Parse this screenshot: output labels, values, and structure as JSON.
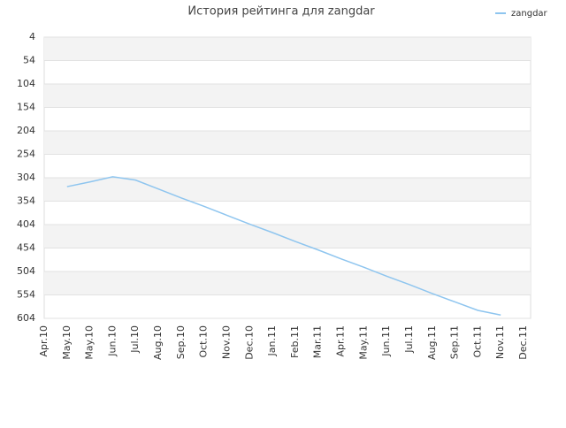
{
  "chart_data": {
    "type": "line",
    "title": "История рейтинга для zangdar",
    "categories": [
      "Apr.10",
      "May.10",
      "May.10",
      "Jun.10",
      "Jul.10",
      "Aug.10",
      "Sep.10",
      "Oct.10",
      "Nov.10",
      "Dec.10",
      "Jan.11",
      "Feb.11",
      "Mar.11",
      "Apr.11",
      "May.11",
      "Jun.11",
      "Jul.11",
      "Aug.11",
      "Sep.11",
      "Oct.11",
      "Nov.11",
      "Dec.11"
    ],
    "series": [
      {
        "name": "zangdar",
        "color": "#8ec5ef",
        "values": [
          null,
          323,
          313,
          302,
          309,
          328,
          347,
          365,
          384,
          403,
          421,
          440,
          458,
          477,
          495,
          514,
          532,
          551,
          569,
          587,
          597,
          null
        ]
      }
    ],
    "ylim": [
      604,
      4
    ],
    "yticks": [
      4,
      54,
      104,
      154,
      204,
      254,
      304,
      354,
      404,
      454,
      504,
      554,
      604
    ],
    "grid": true,
    "legend": "top-right"
  }
}
